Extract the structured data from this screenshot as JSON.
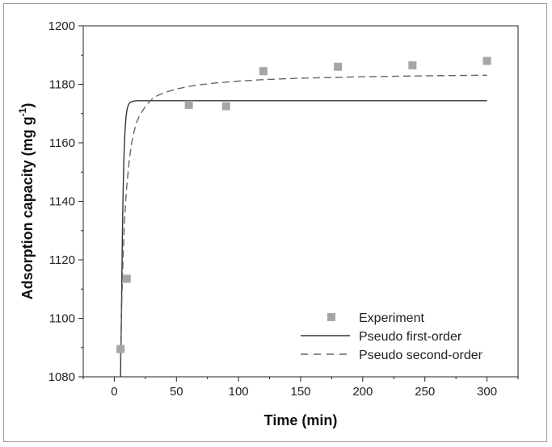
{
  "chart_data": {
    "type": "scatter",
    "xlabel": "Time (min)",
    "ylabel": "Adsorption capacity (mg g",
    "ylabel_sup": "-1",
    "ylabel_end": ")",
    "xlim": [
      -25,
      325
    ],
    "ylim": [
      1080,
      1200
    ],
    "x_ticks": [
      0,
      50,
      100,
      150,
      200,
      250,
      300
    ],
    "y_ticks": [
      1080,
      1100,
      1120,
      1140,
      1160,
      1180,
      1200
    ],
    "grid": false,
    "legend_position": "bottom-right",
    "series": [
      {
        "name": "Experiment",
        "kind": "markers",
        "marker": "square",
        "color": "#a6a6a6",
        "x": [
          5,
          10,
          60,
          90,
          120,
          180,
          240,
          300
        ],
        "y": [
          1089.5,
          1113.5,
          1173,
          1172.5,
          1184.5,
          1186,
          1186.5,
          1188
        ]
      },
      {
        "name": "Pseudo first-order",
        "kind": "line",
        "dash": "solid",
        "color": "#333333",
        "x": [
          5,
          5.5,
          6,
          6.5,
          7,
          7.5,
          8,
          8.5,
          9,
          9.5,
          10,
          10.5,
          11,
          12,
          13,
          14,
          15,
          16,
          18,
          20,
          25,
          30,
          40,
          60,
          100,
          150,
          200,
          250,
          300
        ],
        "y": [
          1080,
          1093,
          1111,
          1128,
          1141,
          1151,
          1158,
          1163,
          1166.5,
          1169,
          1170.7,
          1171.8,
          1172.6,
          1173.5,
          1173.9,
          1174.1,
          1174.2,
          1174.3,
          1174.4,
          1174.4,
          1174.4,
          1174.4,
          1174.4,
          1174.4,
          1174.4,
          1174.4,
          1174.4,
          1174.4,
          1174.4
        ]
      },
      {
        "name": "Pseudo second-order",
        "kind": "line",
        "dash": "dashed",
        "color": "#666666",
        "x": [
          5,
          6,
          7,
          8,
          9,
          10,
          12,
          14,
          16,
          18,
          20,
          25,
          30,
          35,
          40,
          50,
          60,
          70,
          80,
          100,
          120,
          150,
          200,
          250,
          300
        ],
        "y": [
          1086,
          1105,
          1120,
          1131,
          1139,
          1145,
          1154,
          1160,
          1164,
          1167,
          1169,
          1172.5,
          1174.8,
          1176.2,
          1177.1,
          1178.4,
          1179.3,
          1179.9,
          1180.4,
          1181.1,
          1181.6,
          1182.1,
          1182.6,
          1182.9,
          1183.1
        ]
      }
    ]
  }
}
